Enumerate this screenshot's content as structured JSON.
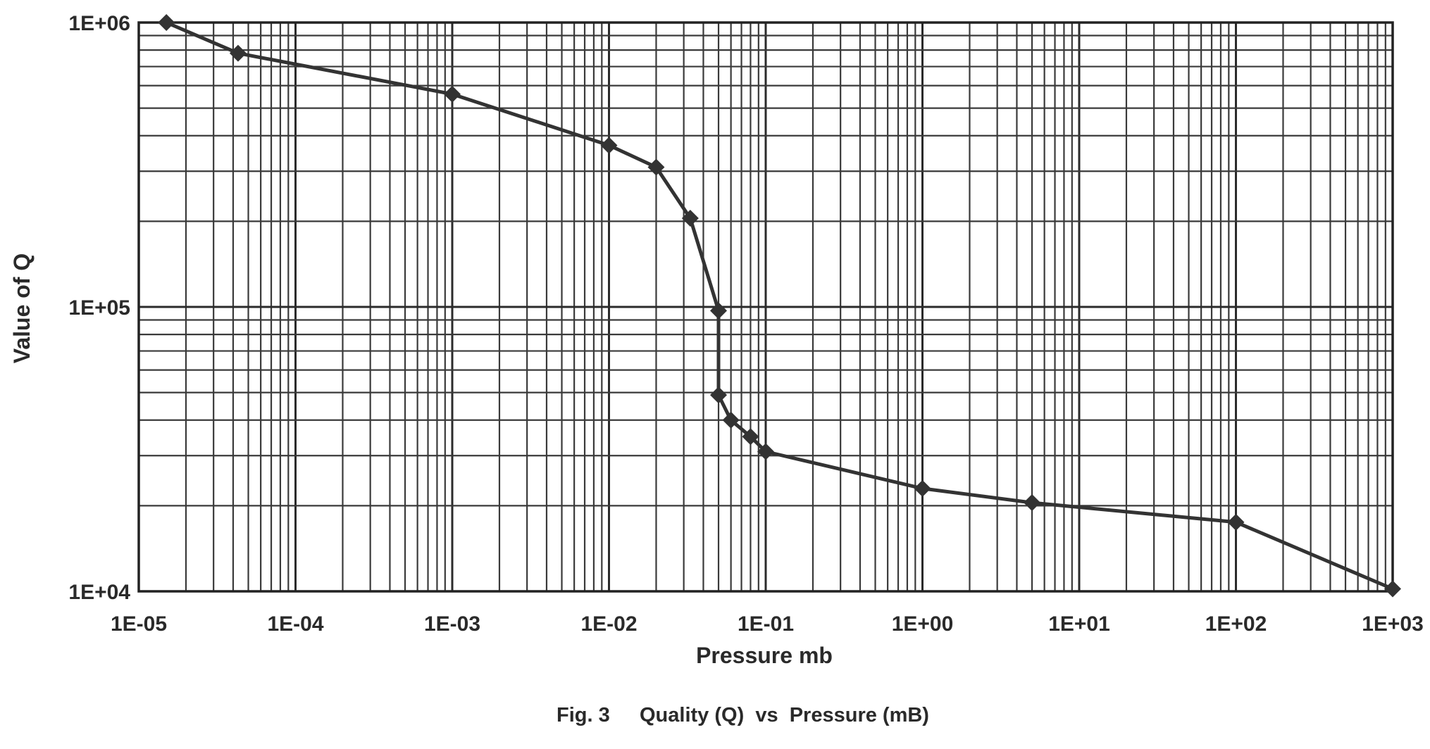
{
  "chart_data": {
    "type": "line",
    "title": "",
    "caption": {
      "figure_label": "Fig. 3",
      "text": "Quality (Q)  vs  Pressure (mB)"
    },
    "xlabel": "Pressure mb",
    "ylabel": "Value of Q",
    "x_scale": "log",
    "y_scale": "log",
    "xlim": [
      1e-05,
      1000
    ],
    "ylim": [
      10000,
      1000000
    ],
    "grid": true,
    "legend": "none",
    "x_tick_values": [
      1e-05,
      0.0001,
      0.001,
      0.01,
      0.1,
      1,
      10,
      100,
      1000
    ],
    "x_tick_labels": [
      "1E-05",
      "1E-04",
      "1E-03",
      "1E-02",
      "1E-01",
      "1E+00",
      "1E+01",
      "1E+02",
      "1E+03"
    ],
    "y_tick_values": [
      10000,
      100000,
      1000000
    ],
    "y_tick_labels": [
      "1E+04",
      "1E+05",
      "1E+06"
    ],
    "series": [
      {
        "name": "Q",
        "color": "#333333",
        "marker": "diamond",
        "x": [
          1.5e-05,
          4.3e-05,
          0.001,
          0.01,
          0.02,
          0.033,
          0.05,
          0.05,
          0.06,
          0.08,
          0.1,
          1,
          5,
          100,
          1000
        ],
        "y": [
          1000000,
          780000,
          560000,
          370000,
          310000,
          205000,
          97000,
          49000,
          40000,
          35000,
          31000,
          23000,
          20500,
          17500,
          10200
        ]
      }
    ]
  }
}
